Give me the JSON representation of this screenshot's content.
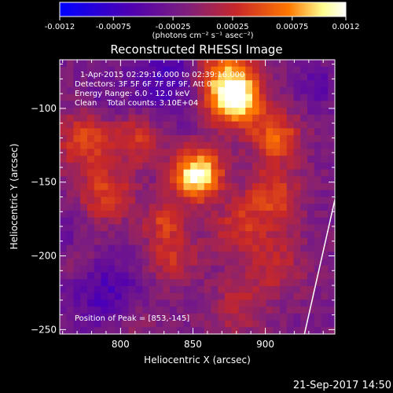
{
  "colorbar": {
    "ticks": [
      "-0.0012",
      "-0.00075",
      "-0.00025",
      "0.00025",
      "0.00075",
      "0.0012"
    ],
    "tick_values": [
      -0.0012,
      -0.00075,
      -0.00025,
      0.00025,
      0.00075,
      0.0012
    ],
    "units": "(photons cm⁻² s⁻¹ asec⁻²)",
    "range": [
      -0.0012,
      0.0012
    ],
    "colors": [
      "#0000ff",
      "#5000b0",
      "#80207a",
      "#c82828",
      "#ff7800",
      "#ffff90",
      "#ffffff"
    ]
  },
  "chart_data": {
    "type": "heatmap",
    "title": "Reconstructed RHESSI Image",
    "xlabel": "Heliocentric X (arcsec)",
    "ylabel": "Heliocentric Y (arcsec)",
    "xlim": [
      758,
      948
    ],
    "ylim": [
      -253,
      -67
    ],
    "xticks": [
      800,
      850,
      900
    ],
    "yticks": [
      -100,
      -150,
      -200,
      -250
    ],
    "annotations": {
      "time": "1-Apr-2015 02:29:16.000 to 02:39:16.000",
      "detectors": "Detectors: 3F 5F 6F 7F 8F 9F, Att 0",
      "energy": "Energy Range: 6.0 - 12.0 keV",
      "method": "Clean    Total counts: 3.10E+04",
      "peak": "Position of Peak = [853,-145]"
    },
    "peak": {
      "x": 853,
      "y": -145
    },
    "limb_line": [
      [
        927,
        -253
      ],
      [
        948,
        -162
      ]
    ],
    "sources": [
      {
        "x": 853,
        "y": -145,
        "sigma": 12,
        "amp": 1.0
      },
      {
        "x": 880,
        "y": -95,
        "sigma": 13,
        "amp": 0.85
      },
      {
        "x": 870,
        "y": -78,
        "sigma": 15,
        "amp": 0.6
      },
      {
        "x": 908,
        "y": -120,
        "sigma": 12,
        "amp": 0.55
      },
      {
        "x": 775,
        "y": -122,
        "sigma": 14,
        "amp": 0.45
      },
      {
        "x": 790,
        "y": -158,
        "sigma": 14,
        "amp": 0.42
      },
      {
        "x": 812,
        "y": -120,
        "sigma": 12,
        "amp": 0.38
      },
      {
        "x": 835,
        "y": -200,
        "sigma": 14,
        "amp": 0.35
      },
      {
        "x": 905,
        "y": -160,
        "sigma": 14,
        "amp": 0.45
      },
      {
        "x": 905,
        "y": -205,
        "sigma": 16,
        "amp": 0.3
      },
      {
        "x": 880,
        "y": -235,
        "sigma": 14,
        "amp": 0.25
      },
      {
        "x": 810,
        "y": -245,
        "sigma": 12,
        "amp": 0.18
      },
      {
        "x": 770,
        "y": -200,
        "sigma": 12,
        "amp": 0.15
      },
      {
        "x": 830,
        "y": -175,
        "sigma": 10,
        "amp": 0.35
      },
      {
        "x": 880,
        "y": -180,
        "sigma": 12,
        "amp": 0.32
      }
    ],
    "negative_regions": [
      {
        "x": 835,
        "y": -80,
        "sigma": 18,
        "amp": 0.35
      },
      {
        "x": 790,
        "y": -225,
        "sigma": 18,
        "amp": 0.3
      },
      {
        "x": 760,
        "y": -185,
        "sigma": 10,
        "amp": 0.2
      },
      {
        "x": 790,
        "y": -95,
        "sigma": 10,
        "amp": 0.15
      },
      {
        "x": 935,
        "y": -85,
        "sigma": 10,
        "amp": 0.2
      }
    ]
  },
  "footer": {
    "date": "21-Sep-2017 14:50"
  }
}
